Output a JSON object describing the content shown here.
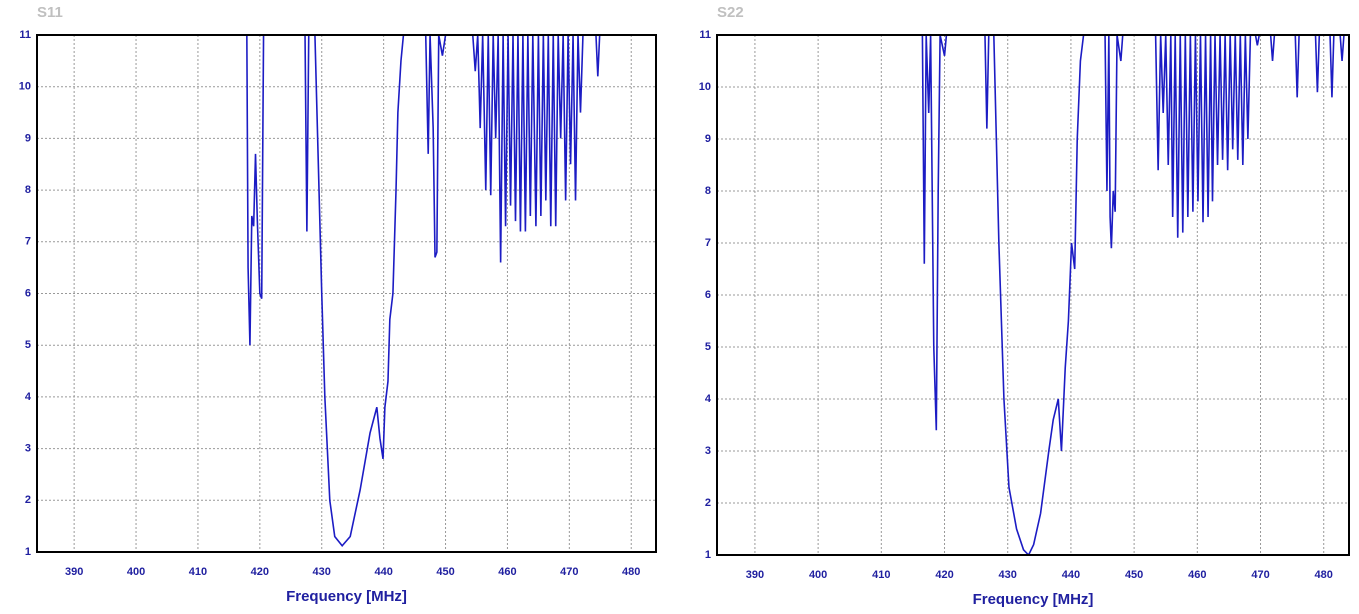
{
  "chart_data": [
    {
      "type": "line",
      "title": "S11",
      "xlabel": "Frequency [MHz]",
      "xlim": [
        384,
        484
      ],
      "xticks": [
        390,
        400,
        410,
        420,
        430,
        440,
        450,
        460,
        470,
        480
      ],
      "ylim": [
        1,
        11
      ],
      "yticks": [
        1,
        2,
        3,
        4,
        5,
        6,
        7,
        8,
        9,
        10,
        11
      ],
      "grid": true,
      "x": [
        417.9,
        418.1,
        418.4,
        418.7,
        419.0,
        419.3,
        419.6,
        420.0,
        420.3,
        420.6,
        427.3,
        427.6,
        427.9,
        428.9,
        430.0,
        430.5,
        431.3,
        432.1,
        433.3,
        434.6,
        436.2,
        437.8,
        438.9,
        439.4,
        439.9,
        440.2,
        440.7,
        441.0,
        441.5,
        442.0,
        442.3,
        442.8,
        443.2,
        446.8,
        447.2,
        447.5,
        448.0,
        448.3,
        448.6,
        448.9,
        449.5,
        450.0,
        454.4,
        454.8,
        455.2,
        455.6,
        456.0,
        456.5,
        456.9,
        457.3,
        457.7,
        458.1,
        458.5,
        458.9,
        459.3,
        459.7,
        460.1,
        460.5,
        460.9,
        461.3,
        461.7,
        462.1,
        462.5,
        462.9,
        463.3,
        463.7,
        464.1,
        464.6,
        465.0,
        465.4,
        465.8,
        466.2,
        466.6,
        467.0,
        467.4,
        467.8,
        468.2,
        468.6,
        469.0,
        469.4,
        469.8,
        470.2,
        470.6,
        471.0,
        471.4,
        471.8,
        472.2,
        474.3,
        474.6,
        474.9
      ],
      "series": [
        {
          "color": "#1c1cc4",
          "values": [
            11,
            6.5,
            5,
            7.5,
            7.3,
            8.7,
            7.4,
            6.0,
            5.9,
            11,
            11,
            7.2,
            11,
            11,
            6,
            4,
            2,
            1.3,
            1.12,
            1.3,
            2.2,
            3.3,
            3.8,
            3.2,
            2.8,
            3.8,
            4.3,
            5.5,
            6.0,
            8,
            9.5,
            10.5,
            11,
            11,
            8.7,
            11,
            9.2,
            6.7,
            6.8,
            11,
            10.6,
            11,
            11,
            10.3,
            11,
            9.2,
            11,
            8.0,
            11,
            7.9,
            11,
            9.0,
            11,
            6.6,
            11,
            7.3,
            11,
            7.7,
            11,
            7.4,
            11,
            7.2,
            11,
            7.2,
            11,
            7.5,
            11,
            7.3,
            11,
            7.5,
            11,
            7.8,
            11,
            7.3,
            11,
            7.3,
            11,
            9.0,
            11,
            7.8,
            11,
            8.5,
            11,
            7.8,
            11,
            9.5,
            11,
            11,
            10.2,
            11
          ]
        }
      ]
    },
    {
      "type": "line",
      "title": "S22",
      "xlabel": "Frequency [MHz]",
      "xlim": [
        384,
        484
      ],
      "xticks": [
        390,
        400,
        410,
        420,
        430,
        440,
        450,
        460,
        470,
        480
      ],
      "ylim": [
        1,
        11
      ],
      "yticks": [
        1,
        2,
        3,
        4,
        5,
        6,
        7,
        8,
        9,
        10,
        11
      ],
      "grid": true,
      "x": [
        416.5,
        416.8,
        417.1,
        417.5,
        417.8,
        418.3,
        418.7,
        419.0,
        419.3,
        420.0,
        420.3,
        426.4,
        426.7,
        427.0,
        427.8,
        428.6,
        429.4,
        430.2,
        431.4,
        432.5,
        433.3,
        434.1,
        435.2,
        436.5,
        437.2,
        438.0,
        438.5,
        439.1,
        439.6,
        440.1,
        440.6,
        441.0,
        441.5,
        442.0,
        445.4,
        445.7,
        446.0,
        446.2,
        446.4,
        446.7,
        447.0,
        447.3,
        447.9,
        448.2,
        453.4,
        453.8,
        454.2,
        454.6,
        455.0,
        455.4,
        455.8,
        456.1,
        456.5,
        456.9,
        457.3,
        457.7,
        458.1,
        458.5,
        458.9,
        459.3,
        459.7,
        460.1,
        460.5,
        460.9,
        461.3,
        461.7,
        462.1,
        462.4,
        462.8,
        463.2,
        463.6,
        464.0,
        464.4,
        464.8,
        465.2,
        465.6,
        466.0,
        466.4,
        466.8,
        467.2,
        467.6,
        468.0,
        468.4,
        469.2,
        469.5,
        469.8,
        471.6,
        471.9,
        472.2,
        475.5,
        475.8,
        476.1,
        478.7,
        479.0,
        479.3,
        481.0,
        481.3,
        481.6,
        482.6,
        482.9,
        483.2
      ],
      "series": [
        {
          "color": "#1c1cc4",
          "values": [
            11,
            6.6,
            11,
            9.5,
            11,
            5.0,
            3.4,
            8,
            11,
            10.6,
            11,
            11,
            9.2,
            11,
            11,
            7,
            4,
            2.3,
            1.5,
            1.1,
            1.0,
            1.2,
            1.8,
            3.0,
            3.6,
            4.0,
            3.0,
            4.6,
            5.5,
            7.0,
            6.5,
            9,
            10.5,
            11,
            11,
            8.0,
            11,
            7.5,
            6.9,
            8,
            7.6,
            11,
            10.5,
            11,
            11,
            8.4,
            11,
            9.5,
            11,
            8.5,
            11,
            7.5,
            11,
            7.1,
            11,
            7.2,
            11,
            7.5,
            11,
            7.6,
            11,
            7.8,
            11,
            7.4,
            11,
            7.5,
            11,
            7.8,
            11,
            8.5,
            11,
            8.6,
            11,
            8.4,
            11,
            8.8,
            11,
            8.6,
            11,
            8.5,
            11,
            9.0,
            11,
            11,
            10.8,
            11,
            11,
            10.5,
            11,
            11,
            9.8,
            11,
            11,
            9.9,
            11,
            11,
            9.8,
            11,
            11,
            10.5,
            11
          ]
        }
      ]
    }
  ]
}
